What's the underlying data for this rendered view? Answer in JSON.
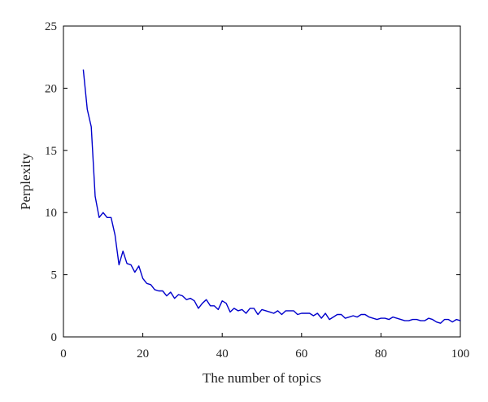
{
  "chart_data": {
    "type": "line",
    "title": "",
    "xlabel": "The number of topics",
    "ylabel": "Perplexity",
    "xlim": [
      0,
      100
    ],
    "ylim": [
      0,
      25
    ],
    "xticks": [
      0,
      20,
      40,
      60,
      80,
      100
    ],
    "yticks": [
      0,
      5,
      10,
      15,
      20,
      25
    ],
    "grid": false,
    "legend": "none",
    "colors": {
      "line": "#0000cc",
      "axes": "#000000"
    },
    "series": [
      {
        "x": [
          5,
          6,
          7,
          8,
          9,
          10,
          11,
          12,
          13,
          14,
          15,
          16,
          17,
          18,
          19,
          20,
          21,
          22,
          23,
          24,
          25,
          26,
          27,
          28,
          29,
          30,
          31,
          32,
          33,
          34,
          35,
          36,
          37,
          38,
          39,
          40,
          41,
          42,
          43,
          44,
          45,
          46,
          47,
          48,
          49,
          50,
          51,
          52,
          53,
          54,
          55,
          56,
          57,
          58,
          59,
          60,
          61,
          62,
          63,
          64,
          65,
          66,
          67,
          68,
          69,
          70,
          71,
          72,
          73,
          74,
          75,
          76,
          77,
          78,
          79,
          80,
          81,
          82,
          83,
          84,
          85,
          86,
          87,
          88,
          89,
          90,
          91,
          92,
          93,
          94,
          95,
          96,
          97,
          98,
          99,
          100
        ],
        "y": [
          21.5,
          18.3,
          16.9,
          11.3,
          9.6,
          10.0,
          9.6,
          9.6,
          8.2,
          5.8,
          6.9,
          5.9,
          5.8,
          5.2,
          5.7,
          4.7,
          4.3,
          4.2,
          3.8,
          3.7,
          3.7,
          3.3,
          3.6,
          3.1,
          3.4,
          3.3,
          3.0,
          3.1,
          2.9,
          2.3,
          2.7,
          3.0,
          2.5,
          2.5,
          2.2,
          2.9,
          2.7,
          2.0,
          2.3,
          2.1,
          2.2,
          1.9,
          2.3,
          2.3,
          1.8,
          2.2,
          2.1,
          2.0,
          1.9,
          2.1,
          1.8,
          2.1,
          2.1,
          2.1,
          1.8,
          1.9,
          1.9,
          1.9,
          1.7,
          1.9,
          1.5,
          1.9,
          1.4,
          1.6,
          1.8,
          1.8,
          1.5,
          1.6,
          1.7,
          1.6,
          1.8,
          1.8,
          1.6,
          1.5,
          1.4,
          1.5,
          1.5,
          1.4,
          1.6,
          1.5,
          1.4,
          1.3,
          1.3,
          1.4,
          1.4,
          1.3,
          1.3,
          1.5,
          1.4,
          1.2,
          1.1,
          1.4,
          1.4,
          1.2,
          1.4,
          1.3
        ]
      }
    ]
  }
}
